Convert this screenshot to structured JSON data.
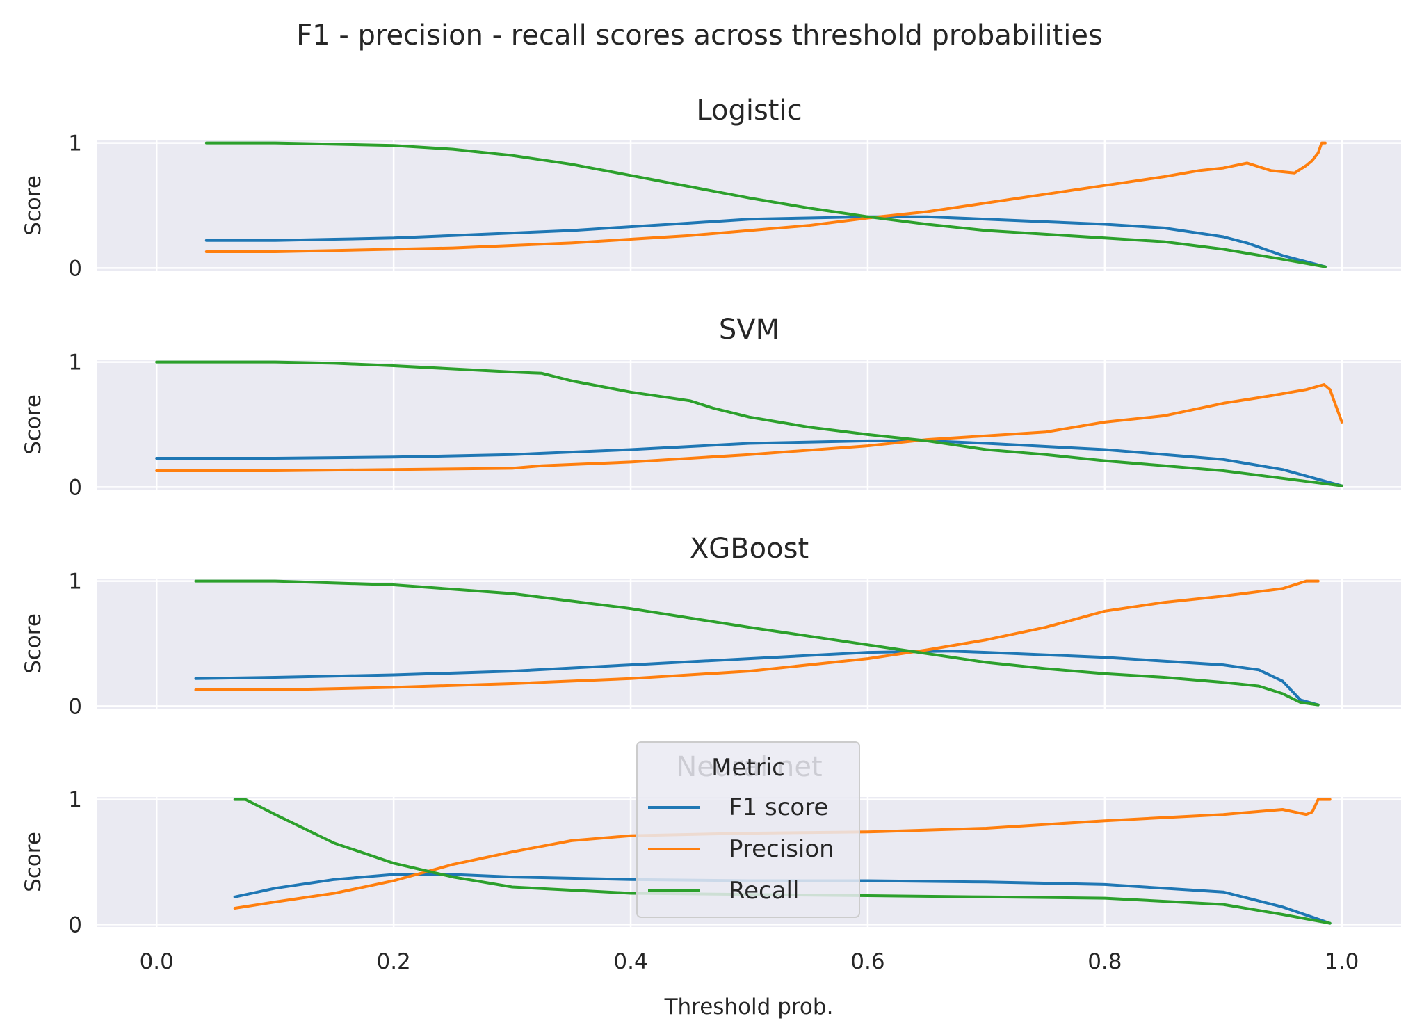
{
  "chart_data": {
    "type": "line",
    "title": "F1 - precision - recall scores across threshold probabilities",
    "xlabel": "Threshold prob.",
    "ylabel": "Score",
    "xlim": [
      -0.05,
      1.05
    ],
    "ylim": [
      -0.02,
      1.02
    ],
    "xticks": [
      "0.0",
      "0.2",
      "0.4",
      "0.6",
      "0.8",
      "1.0"
    ],
    "yticks": [
      "0",
      "1"
    ],
    "grid": true,
    "legend": {
      "title": "Metric",
      "placement": "lower-center",
      "entries": [
        {
          "label": "F1 score",
          "color": "#1f77b4"
        },
        {
          "label": "Precision",
          "color": "#ff7f0e"
        },
        {
          "label": "Recall",
          "color": "#2ca02c"
        }
      ]
    },
    "panels": [
      {
        "title": "Logistic",
        "series": [
          {
            "name": "F1 score",
            "color": "#1f77b4",
            "x": [
              0.042,
              0.1,
              0.15,
              0.2,
              0.25,
              0.3,
              0.35,
              0.4,
              0.45,
              0.5,
              0.55,
              0.6,
              0.65,
              0.7,
              0.75,
              0.8,
              0.85,
              0.9,
              0.92,
              0.95,
              0.986
            ],
            "y": [
              0.22,
              0.22,
              0.23,
              0.24,
              0.26,
              0.28,
              0.3,
              0.33,
              0.36,
              0.39,
              0.4,
              0.41,
              0.41,
              0.39,
              0.37,
              0.35,
              0.32,
              0.25,
              0.2,
              0.1,
              0.01
            ]
          },
          {
            "name": "Precision",
            "color": "#ff7f0e",
            "x": [
              0.042,
              0.1,
              0.15,
              0.2,
              0.25,
              0.3,
              0.35,
              0.4,
              0.45,
              0.5,
              0.55,
              0.6,
              0.65,
              0.7,
              0.75,
              0.8,
              0.85,
              0.88,
              0.9,
              0.92,
              0.94,
              0.96,
              0.97,
              0.975,
              0.98,
              0.983,
              0.986
            ],
            "y": [
              0.13,
              0.13,
              0.14,
              0.15,
              0.16,
              0.18,
              0.2,
              0.23,
              0.26,
              0.3,
              0.34,
              0.4,
              0.45,
              0.52,
              0.59,
              0.66,
              0.73,
              0.78,
              0.8,
              0.84,
              0.78,
              0.76,
              0.82,
              0.86,
              0.92,
              1.0,
              1.0
            ]
          },
          {
            "name": "Recall",
            "color": "#2ca02c",
            "x": [
              0.042,
              0.1,
              0.15,
              0.2,
              0.25,
              0.3,
              0.35,
              0.4,
              0.45,
              0.5,
              0.55,
              0.6,
              0.65,
              0.7,
              0.75,
              0.8,
              0.85,
              0.9,
              0.95,
              0.986
            ],
            "y": [
              1.0,
              1.0,
              0.99,
              0.98,
              0.95,
              0.9,
              0.83,
              0.74,
              0.65,
              0.56,
              0.48,
              0.41,
              0.35,
              0.3,
              0.27,
              0.24,
              0.21,
              0.15,
              0.07,
              0.01
            ]
          }
        ]
      },
      {
        "title": "SVM",
        "series": [
          {
            "name": "F1 score",
            "color": "#1f77b4",
            "x": [
              0.0,
              0.1,
              0.2,
              0.3,
              0.325,
              0.4,
              0.5,
              0.6,
              0.65,
              0.7,
              0.8,
              0.9,
              0.95,
              1.0
            ],
            "y": [
              0.23,
              0.23,
              0.24,
              0.26,
              0.27,
              0.3,
              0.35,
              0.37,
              0.37,
              0.35,
              0.3,
              0.22,
              0.14,
              0.01
            ]
          },
          {
            "name": "Precision",
            "color": "#ff7f0e",
            "x": [
              0.0,
              0.1,
              0.2,
              0.3,
              0.325,
              0.4,
              0.5,
              0.6,
              0.65,
              0.7,
              0.75,
              0.8,
              0.85,
              0.9,
              0.94,
              0.97,
              0.985,
              0.99,
              1.0
            ],
            "y": [
              0.13,
              0.13,
              0.14,
              0.15,
              0.17,
              0.2,
              0.26,
              0.33,
              0.38,
              0.41,
              0.44,
              0.52,
              0.57,
              0.67,
              0.73,
              0.78,
              0.82,
              0.78,
              0.52
            ]
          },
          {
            "name": "Recall",
            "color": "#2ca02c",
            "x": [
              0.0,
              0.1,
              0.15,
              0.2,
              0.3,
              0.325,
              0.35,
              0.4,
              0.45,
              0.47,
              0.5,
              0.55,
              0.6,
              0.65,
              0.7,
              0.75,
              0.8,
              0.85,
              0.9,
              0.95,
              1.0
            ],
            "y": [
              1.0,
              1.0,
              0.99,
              0.97,
              0.92,
              0.91,
              0.85,
              0.76,
              0.69,
              0.63,
              0.56,
              0.48,
              0.42,
              0.37,
              0.3,
              0.26,
              0.21,
              0.17,
              0.13,
              0.07,
              0.01
            ]
          }
        ]
      },
      {
        "title": "XGBoost",
        "series": [
          {
            "name": "F1 score",
            "color": "#1f77b4",
            "x": [
              0.033,
              0.1,
              0.2,
              0.3,
              0.4,
              0.5,
              0.6,
              0.67,
              0.7,
              0.8,
              0.9,
              0.93,
              0.95,
              0.965,
              0.98
            ],
            "y": [
              0.22,
              0.23,
              0.25,
              0.28,
              0.33,
              0.38,
              0.43,
              0.44,
              0.43,
              0.39,
              0.33,
              0.29,
              0.2,
              0.05,
              0.01
            ]
          },
          {
            "name": "Precision",
            "color": "#ff7f0e",
            "x": [
              0.033,
              0.1,
              0.2,
              0.3,
              0.4,
              0.5,
              0.6,
              0.65,
              0.7,
              0.75,
              0.8,
              0.85,
              0.9,
              0.95,
              0.97,
              0.98
            ],
            "y": [
              0.13,
              0.13,
              0.15,
              0.18,
              0.22,
              0.28,
              0.38,
              0.45,
              0.53,
              0.63,
              0.76,
              0.83,
              0.88,
              0.94,
              1.0,
              1.0
            ]
          },
          {
            "name": "Recall",
            "color": "#2ca02c",
            "x": [
              0.033,
              0.1,
              0.2,
              0.3,
              0.4,
              0.5,
              0.55,
              0.6,
              0.65,
              0.7,
              0.75,
              0.8,
              0.85,
              0.9,
              0.93,
              0.95,
              0.965,
              0.98
            ],
            "y": [
              1.0,
              1.0,
              0.97,
              0.9,
              0.78,
              0.63,
              0.56,
              0.49,
              0.42,
              0.35,
              0.3,
              0.26,
              0.23,
              0.19,
              0.16,
              0.1,
              0.03,
              0.01
            ]
          }
        ]
      },
      {
        "title": "Neural net",
        "series": [
          {
            "name": "F1 score",
            "color": "#1f77b4",
            "x": [
              0.066,
              0.1,
              0.15,
              0.2,
              0.25,
              0.3,
              0.4,
              0.5,
              0.6,
              0.7,
              0.8,
              0.9,
              0.95,
              0.99
            ],
            "y": [
              0.22,
              0.29,
              0.36,
              0.4,
              0.4,
              0.38,
              0.36,
              0.35,
              0.35,
              0.34,
              0.32,
              0.26,
              0.14,
              0.01
            ]
          },
          {
            "name": "Precision",
            "color": "#ff7f0e",
            "x": [
              0.066,
              0.1,
              0.15,
              0.2,
              0.25,
              0.3,
              0.35,
              0.4,
              0.5,
              0.6,
              0.7,
              0.8,
              0.9,
              0.95,
              0.97,
              0.975,
              0.98,
              0.99
            ],
            "y": [
              0.13,
              0.18,
              0.25,
              0.35,
              0.48,
              0.58,
              0.67,
              0.71,
              0.73,
              0.74,
              0.77,
              0.83,
              0.88,
              0.92,
              0.88,
              0.9,
              1.0,
              1.0
            ]
          },
          {
            "name": "Recall",
            "color": "#2ca02c",
            "x": [
              0.066,
              0.075,
              0.1,
              0.15,
              0.2,
              0.25,
              0.3,
              0.4,
              0.5,
              0.6,
              0.7,
              0.8,
              0.9,
              0.95,
              0.99
            ],
            "y": [
              1.0,
              1.0,
              0.88,
              0.65,
              0.49,
              0.38,
              0.3,
              0.25,
              0.24,
              0.23,
              0.22,
              0.21,
              0.16,
              0.08,
              0.01
            ]
          }
        ]
      }
    ]
  }
}
